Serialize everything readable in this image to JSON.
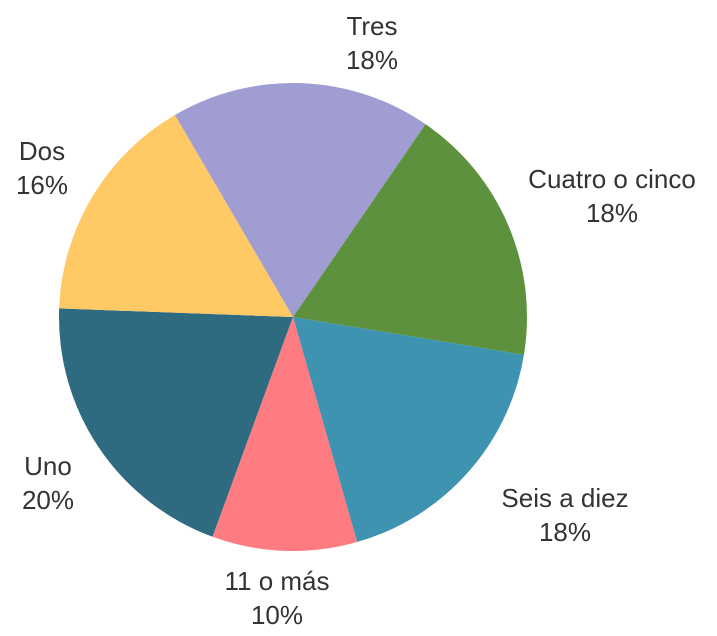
{
  "chart_data": {
    "type": "pie",
    "categories": [
      "Uno",
      "Dos",
      "Tres",
      "Cuatro o cinco",
      "Seis a diez",
      "11 o más"
    ],
    "values": [
      20,
      16,
      18,
      18,
      18,
      10
    ],
    "value_labels": [
      "20%",
      "16%",
      "18%",
      "18%",
      "18%",
      "10%"
    ],
    "colors": [
      "#2e6b80",
      "#ffc966",
      "#9f9dd1",
      "#5e913d",
      "#3d93b0",
      "#ff7b82"
    ]
  }
}
